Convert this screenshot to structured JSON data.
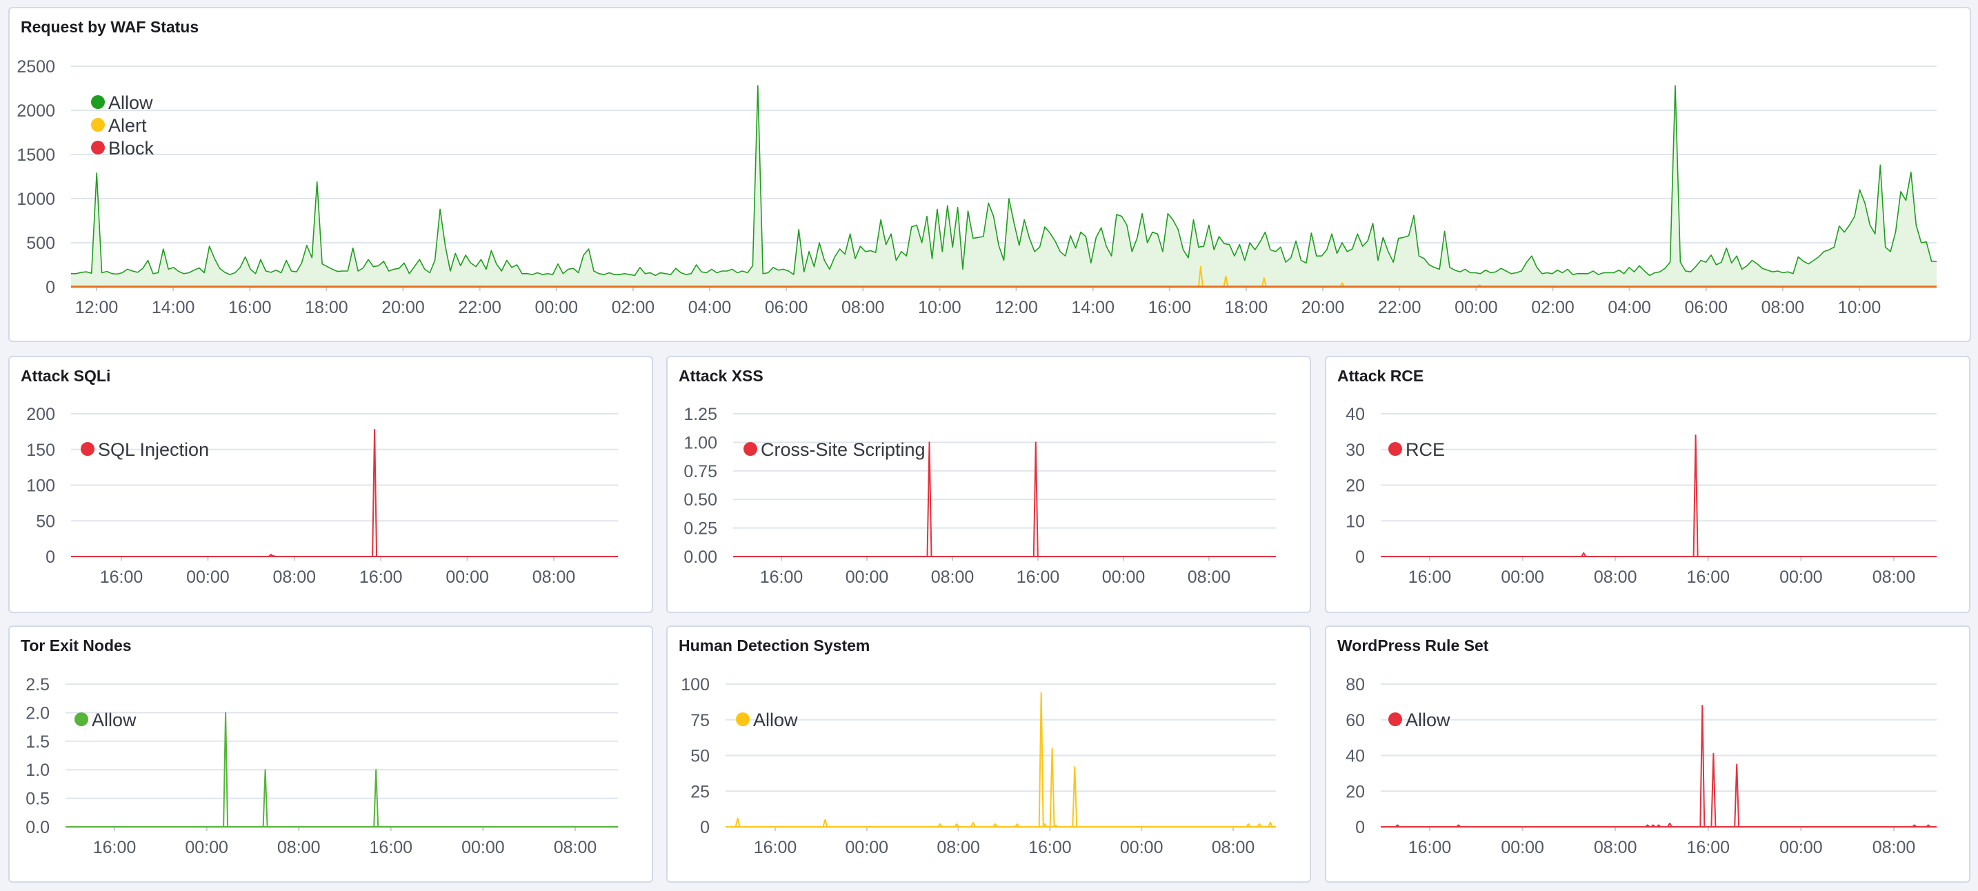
{
  "panels": [
    {
      "title": "Request by WAF Status",
      "chart_data": {
        "type": "area",
        "yticks": [
          0,
          500,
          1000,
          1500,
          2000,
          2500
        ],
        "ylim": [
          0,
          2500
        ],
        "xticks": [
          "12:00",
          "14:00",
          "16:00",
          "18:00",
          "20:00",
          "22:00",
          "00:00",
          "02:00",
          "04:00",
          "06:00",
          "08:00",
          "10:00",
          "12:00",
          "14:00",
          "16:00",
          "18:00",
          "20:00",
          "22:00",
          "00:00",
          "02:00",
          "04:00",
          "06:00",
          "08:00",
          "10:00"
        ],
        "legend_position": "top-left",
        "series": [
          {
            "name": "Allow",
            "color": "#1e9e1e",
            "fill": "#e6f5e2",
            "values": [
              150,
              150,
              165,
              170,
              155,
              1290,
              160,
              175,
              150,
              145,
              160,
              200,
              180,
              165,
              210,
              300,
              150,
              160,
              430,
              200,
              220,
              175,
              150,
              160,
              190,
              215,
              160,
              460,
              320,
              210,
              165,
              140,
              160,
              220,
              340,
              200,
              150,
              310,
              180,
              165,
              190,
              160,
              300,
              180,
              170,
              270,
              470,
              330,
              1190,
              260,
              230,
              200,
              175,
              180,
              180,
              440,
              180,
              215,
              310,
              230,
              240,
              290,
              180,
              200,
              210,
              270,
              150,
              230,
              310,
              200,
              160,
              300,
              880,
              470,
              180,
              380,
              240,
              360,
              270,
              230,
              310,
              200,
              410,
              260,
              180,
              300,
              220,
              250,
              150,
              150,
              140,
              160,
              140,
              150,
              140,
              260,
              150,
              200,
              210,
              160,
              360,
              430,
              180,
              150,
              140,
              160,
              140,
              140,
              150,
              140,
              130,
              220,
              150,
              160,
              130,
              160,
              150,
              140,
              210,
              160,
              140,
              150,
              250,
              170,
              160,
              200,
              160,
              180,
              180,
              200,
              160,
              180,
              160,
              240,
              2280,
              150,
              160,
              220,
              190,
              200,
              180,
              140,
              650,
              170,
              400,
              230,
              500,
              300,
              200,
              340,
              430,
              370,
              600,
              320,
              460,
              400,
              410,
              390,
              760,
              480,
              600,
              300,
              400,
              350,
              680,
              700,
              500,
              800,
              320,
              880,
              400,
              920,
              450,
              900,
              200,
              860,
              550,
              560,
              570,
              950,
              800,
              470,
              300,
              1000,
              720,
              470,
              760,
              550,
              400,
              450,
              680,
              610,
              520,
              400,
              350,
              580,
              440,
              620,
              570,
              270,
              560,
              670,
              460,
              350,
              820,
              800,
              700,
              400,
              550,
              830,
              500,
              620,
              600,
              400,
              830,
              760,
              650,
              420,
              330,
              760,
              450,
              460,
              700,
              420,
              570,
              490,
              480,
              350,
              480,
              300,
              500,
              420,
              510,
              620,
              420,
              400,
              450,
              280,
              330,
              520,
              300,
              270,
              610,
              350,
              350,
              420,
              600,
              380,
              500,
              400,
              430,
              600,
              460,
              520,
              720,
              300,
              560,
              400,
              280,
              550,
              560,
              580,
              810,
              350,
              320,
              250,
              220,
              200,
              630,
              220,
              190,
              170,
              200,
              160,
              160,
              150,
              190,
              160,
              170,
              210,
              180,
              150,
              160,
              180,
              280,
              350,
              220,
              150,
              160,
              150,
              190,
              160,
              200,
              140,
              150,
              150,
              150,
              180,
              140,
              160,
              160,
              160,
              190,
              150,
              220,
              170,
              240,
              180,
              130,
              160,
              170,
              210,
              280,
              2280,
              280,
              180,
              170,
              230,
              300,
              280,
              360,
              250,
              280,
              440,
              270,
              350,
              200,
              240,
              300,
              260,
              210,
              190,
              170,
              180,
              160,
              170,
              150,
              340,
              290,
              260,
              300,
              340,
              400,
              420,
              450,
              690,
              620,
              700,
              800,
              1100,
              950,
              700,
              600,
              1380,
              450,
              400,
              620,
              1080,
              980,
              1300,
              700,
              500,
              510,
              290,
              290
            ]
          },
          {
            "name": "Alert",
            "color": "#fec514",
            "spikes": [
              [
                0.6055,
                230
              ],
              [
                0.619,
                120
              ],
              [
                0.6395,
                100
              ],
              [
                0.6814,
                45
              ],
              [
                0.755,
                20
              ]
            ]
          },
          {
            "name": "Block",
            "color": "#e7303b",
            "values": [
              5
            ]
          }
        ]
      }
    },
    {
      "title": "Attack SQLi",
      "chart_data": {
        "type": "line",
        "ylim": [
          0,
          200
        ],
        "yticks": [
          0,
          50,
          100,
          150,
          200
        ],
        "xticks": [
          "16:00",
          "00:00",
          "08:00",
          "16:00",
          "00:00",
          "08:00"
        ],
        "legend_position": "top-left",
        "series": [
          {
            "name": "SQL Injection",
            "color": "#e7303b",
            "spikes": [
              [
                0.37,
                1
              ],
              [
                0.3655,
                3
              ],
              [
                0.555,
                178
              ]
            ]
          }
        ]
      }
    },
    {
      "title": "Attack XSS",
      "chart_data": {
        "type": "line",
        "ylim": [
          0,
          1.25
        ],
        "yticks": [
          "0.00",
          "0.25",
          "0.50",
          "0.75",
          "1.00",
          "1.25"
        ],
        "xticks": [
          "16:00",
          "00:00",
          "08:00",
          "16:00",
          "00:00",
          "08:00"
        ],
        "legend_position": "top-left",
        "series": [
          {
            "name": "Cross-Site Scripting",
            "color": "#e7303b",
            "spikes": [
              [
                0.3615,
                1
              ],
              [
                0.5575,
                1
              ]
            ]
          }
        ]
      }
    },
    {
      "title": "Attack RCE",
      "chart_data": {
        "type": "line",
        "ylim": [
          0,
          40
        ],
        "yticks": [
          0,
          10,
          20,
          30,
          40
        ],
        "xticks": [
          "16:00",
          "00:00",
          "08:00",
          "16:00",
          "00:00",
          "08:00"
        ],
        "legend_position": "top-left",
        "series": [
          {
            "name": "RCE",
            "color": "#e7303b",
            "spikes": [
              [
                0.365,
                1
              ],
              [
                0.5665,
                34
              ]
            ]
          }
        ]
      }
    },
    {
      "title": "Tor Exit Nodes",
      "chart_data": {
        "type": "line",
        "ylim": [
          0,
          2.5
        ],
        "yticks": [
          "0.0",
          "0.5",
          "1.0",
          "1.5",
          "2.0",
          "2.5"
        ],
        "xticks": [
          "16:00",
          "00:00",
          "08:00",
          "16:00",
          "00:00",
          "08:00"
        ],
        "legend_position": "top-left",
        "series": [
          {
            "name": "Allow",
            "color": "#54b536",
            "spikes": [
              [
                0.2898,
                2
              ],
              [
                0.3616,
                1
              ],
              [
                0.5621,
                1
              ]
            ]
          }
        ]
      }
    },
    {
      "title": "Human Detection System",
      "chart_data": {
        "type": "line",
        "ylim": [
          0,
          100
        ],
        "yticks": [
          0,
          25,
          50,
          75,
          100
        ],
        "xticks": [
          "16:00",
          "00:00",
          "08:00",
          "16:00",
          "00:00",
          "08:00"
        ],
        "legend_position": "top-left",
        "series": [
          {
            "name": "Allow",
            "color": "#fec514",
            "spikes": [
              [
                0.022,
                6
              ],
              [
                0.181,
                5
              ],
              [
                0.39,
                2
              ],
              [
                0.42,
                2
              ],
              [
                0.45,
                3
              ],
              [
                0.49,
                2
              ],
              [
                0.53,
                2
              ],
              [
                0.58,
                2
              ],
              [
                0.6,
                1
              ],
              [
                0.95,
                2
              ],
              [
                0.97,
                2
              ],
              [
                0.99,
                3
              ],
              [
                0.5735,
                94
              ],
              [
                0.5935,
                55
              ],
              [
                0.6345,
                42
              ]
            ]
          }
        ]
      }
    },
    {
      "title": "WordPress Rule Set",
      "chart_data": {
        "type": "line",
        "ylim": [
          0,
          80
        ],
        "yticks": [
          0,
          20,
          40,
          60,
          80
        ],
        "xticks": [
          "16:00",
          "00:00",
          "08:00",
          "16:00",
          "00:00",
          "08:00"
        ],
        "legend_position": "top-left",
        "series": [
          {
            "name": "Allow",
            "color": "#e7303b",
            "spikes": [
              [
                0.03,
                1
              ],
              [
                0.14,
                1
              ],
              [
                0.48,
                1
              ],
              [
                0.49,
                1
              ],
              [
                0.5,
                1
              ],
              [
                0.52,
                2
              ],
              [
                0.96,
                1
              ],
              [
                0.985,
                1
              ],
              [
                0.5785,
                68
              ],
              [
                0.5985,
                41
              ],
              [
                0.6405,
                35
              ]
            ]
          }
        ]
      }
    }
  ]
}
